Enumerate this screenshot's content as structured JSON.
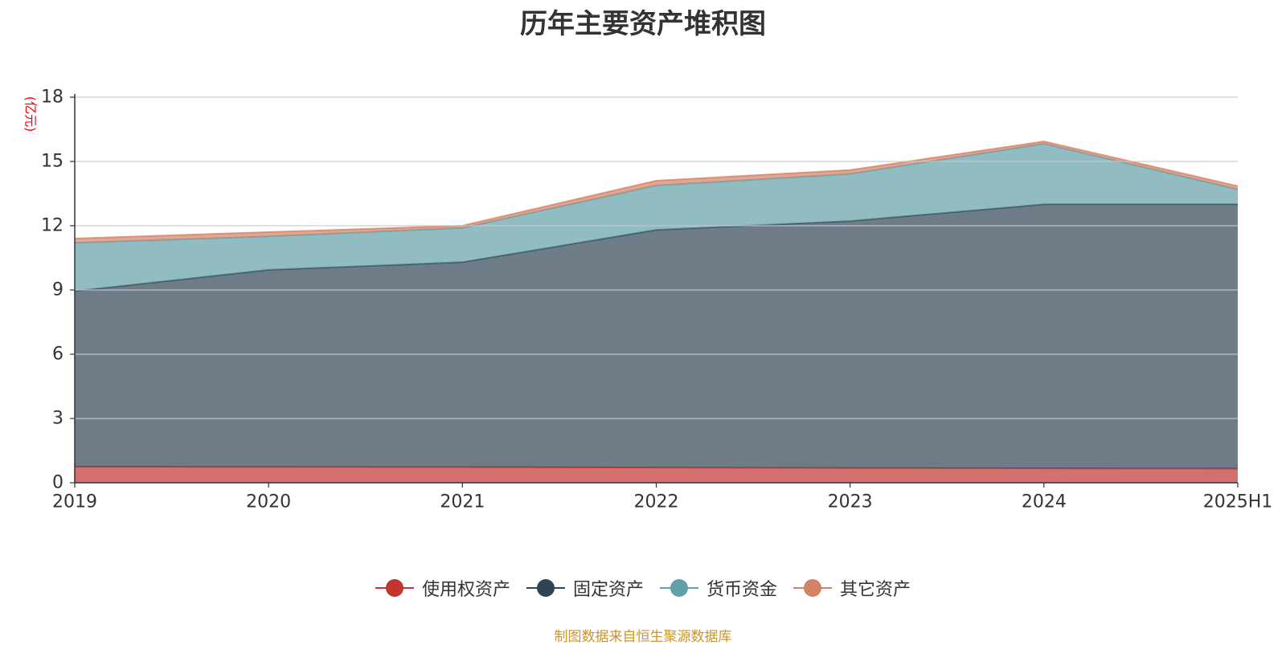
{
  "chart_data": {
    "type": "area",
    "stacked": true,
    "title": "历年主要资产堆积图",
    "ylabel": "(亿元)",
    "xlabel": "",
    "categories": [
      "2019",
      "2020",
      "2021",
      "2022",
      "2023",
      "2024",
      "2025H1"
    ],
    "ylim": [
      0,
      18
    ],
    "yticks": [
      0,
      3,
      6,
      9,
      12,
      15,
      18
    ],
    "grid": true,
    "legend_position": "bottom-center",
    "series": [
      {
        "name": "使用权资产",
        "color": "#c23531",
        "values": [
          0.75,
          0.74,
          0.73,
          0.71,
          0.69,
          0.67,
          0.66
        ]
      },
      {
        "name": "固定资产",
        "color": "#2f4554",
        "values": [
          8.2,
          9.2,
          9.57,
          11.1,
          11.53,
          12.33,
          12.34
        ]
      },
      {
        "name": "货币资金",
        "color": "#61a0a8",
        "values": [
          2.25,
          1.56,
          1.6,
          2.07,
          2.2,
          2.83,
          0.7
        ]
      },
      {
        "name": "其它资产",
        "color": "#d48265",
        "values": [
          0.2,
          0.2,
          0.1,
          0.22,
          0.18,
          0.1,
          0.15
        ]
      }
    ]
  },
  "source_note": "制图数据来自恒生聚源数据库"
}
